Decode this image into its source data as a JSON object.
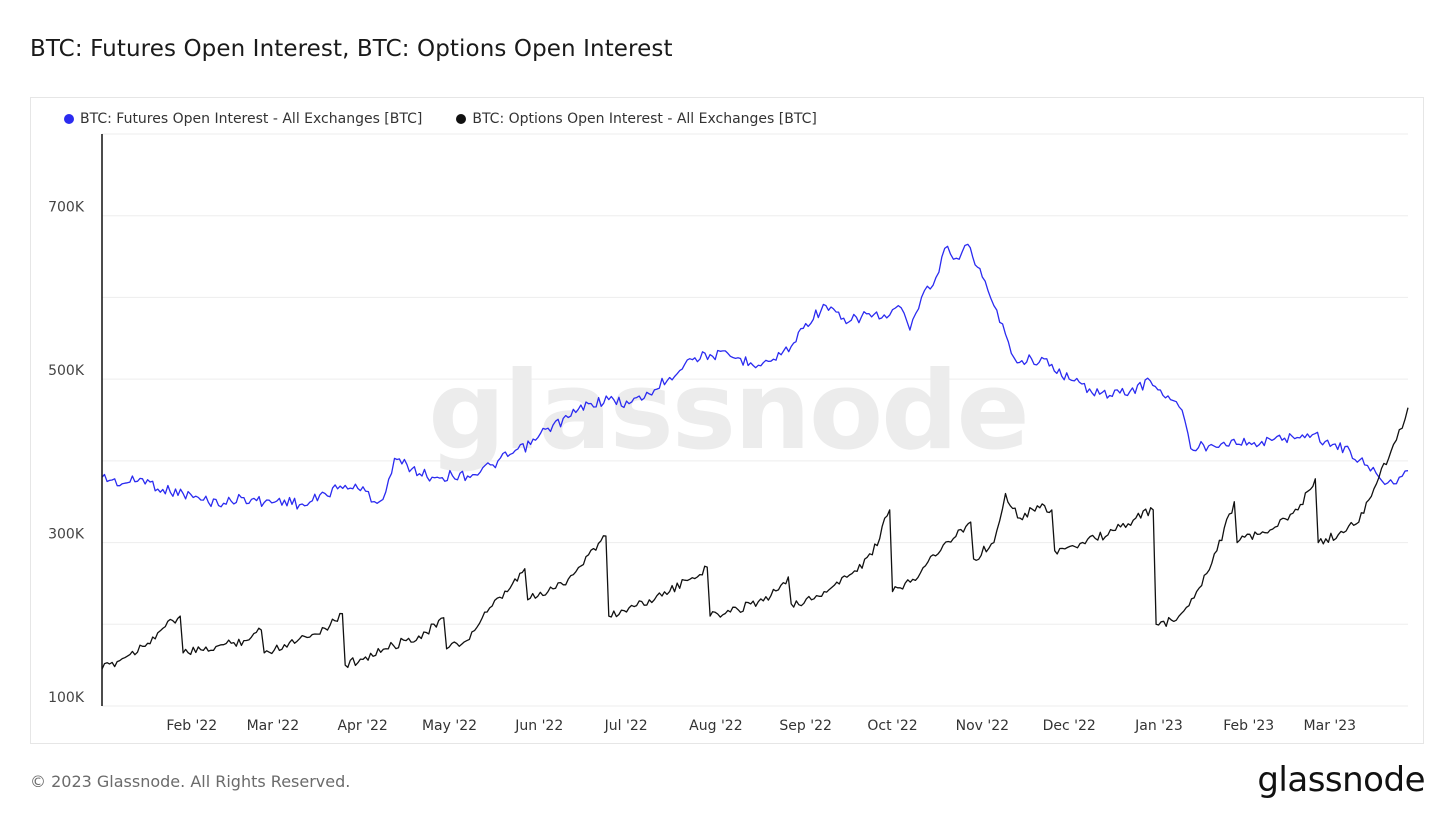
{
  "page": {
    "title": "BTC: Futures Open Interest, BTC: Options Open Interest",
    "copyright": "© 2023 Glassnode. All Rights Reserved.",
    "logo_text": "glassnode",
    "watermark": "glassnode"
  },
  "legend": [
    {
      "label": "BTC: Futures Open Interest - All Exchanges [BTC]",
      "color": "#2b2bf0"
    },
    {
      "label": "BTC: Options Open Interest - All Exchanges [BTC]",
      "color": "#111111"
    }
  ],
  "chart_data": {
    "type": "line",
    "title": "BTC: Futures Open Interest, BTC: Options Open Interest",
    "ylim": [
      100000,
      800000
    ],
    "yticks": [
      {
        "value": 100000,
        "label": "100K"
      },
      {
        "value": 300000,
        "label": "300K"
      },
      {
        "value": 500000,
        "label": "500K"
      },
      {
        "value": 700000,
        "label": "700K"
      }
    ],
    "gridlines": [
      100000,
      200000,
      300000,
      400000,
      500000,
      600000,
      700000,
      800000
    ],
    "xlim": [
      "2022-01-01",
      "2023-03-28"
    ],
    "xticks": [
      {
        "date": "2022-02-01",
        "label": "Feb '22"
      },
      {
        "date": "2022-03-01",
        "label": "Mar '22"
      },
      {
        "date": "2022-04-01",
        "label": "Apr '22"
      },
      {
        "date": "2022-05-01",
        "label": "May '22"
      },
      {
        "date": "2022-06-01",
        "label": "Jun '22"
      },
      {
        "date": "2022-07-01",
        "label": "Jul '22"
      },
      {
        "date": "2022-08-01",
        "label": "Aug '22"
      },
      {
        "date": "2022-09-01",
        "label": "Sep '22"
      },
      {
        "date": "2022-10-01",
        "label": "Oct '22"
      },
      {
        "date": "2022-11-01",
        "label": "Nov '22"
      },
      {
        "date": "2022-12-01",
        "label": "Dec '22"
      },
      {
        "date": "2023-01-01",
        "label": "Jan '23"
      },
      {
        "date": "2023-02-01",
        "label": "Feb '23"
      },
      {
        "date": "2023-03-01",
        "label": "Mar '23"
      }
    ],
    "series": [
      {
        "name": "BTC: Futures Open Interest - All Exchanges [BTC]",
        "color": "#2b2bf0",
        "points": [
          [
            "2022-01-01",
            380000
          ],
          [
            "2022-01-08",
            372000
          ],
          [
            "2022-01-15",
            378000
          ],
          [
            "2022-01-22",
            365000
          ],
          [
            "2022-01-29",
            360000
          ],
          [
            "2022-02-05",
            352000
          ],
          [
            "2022-02-12",
            348000
          ],
          [
            "2022-02-19",
            355000
          ],
          [
            "2022-02-26",
            349000
          ],
          [
            "2022-03-05",
            352000
          ],
          [
            "2022-03-12",
            345000
          ],
          [
            "2022-03-19",
            360000
          ],
          [
            "2022-03-26",
            370000
          ],
          [
            "2022-04-02",
            363000
          ],
          [
            "2022-04-06",
            348000
          ],
          [
            "2022-04-09",
            362000
          ],
          [
            "2022-04-12",
            403000
          ],
          [
            "2022-04-18",
            390000
          ],
          [
            "2022-04-25",
            380000
          ],
          [
            "2022-05-02",
            382000
          ],
          [
            "2022-05-09",
            383000
          ],
          [
            "2022-05-16",
            395000
          ],
          [
            "2022-05-22",
            408000
          ],
          [
            "2022-05-29",
            420000
          ],
          [
            "2022-06-04",
            440000
          ],
          [
            "2022-06-11",
            453000
          ],
          [
            "2022-06-18",
            470000
          ],
          [
            "2022-06-25",
            475000
          ],
          [
            "2022-07-02",
            470000
          ],
          [
            "2022-07-09",
            482000
          ],
          [
            "2022-07-16",
            502000
          ],
          [
            "2022-07-23",
            525000
          ],
          [
            "2022-07-30",
            530000
          ],
          [
            "2022-08-06",
            528000
          ],
          [
            "2022-08-13",
            520000
          ],
          [
            "2022-08-20",
            522000
          ],
          [
            "2022-08-27",
            540000
          ],
          [
            "2022-09-01",
            568000
          ],
          [
            "2022-09-08",
            590000
          ],
          [
            "2022-09-15",
            568000
          ],
          [
            "2022-09-22",
            580000
          ],
          [
            "2022-09-29",
            575000
          ],
          [
            "2022-10-03",
            590000
          ],
          [
            "2022-10-07",
            560000
          ],
          [
            "2022-10-11",
            600000
          ],
          [
            "2022-10-15",
            615000
          ],
          [
            "2022-10-19",
            660000
          ],
          [
            "2022-10-23",
            648000
          ],
          [
            "2022-10-27",
            665000
          ],
          [
            "2022-11-01",
            625000
          ],
          [
            "2022-11-05",
            590000
          ],
          [
            "2022-11-09",
            555000
          ],
          [
            "2022-11-13",
            520000
          ],
          [
            "2022-11-18",
            525000
          ],
          [
            "2022-11-25",
            518000
          ],
          [
            "2022-12-01",
            500000
          ],
          [
            "2022-12-08",
            488000
          ],
          [
            "2022-12-15",
            480000
          ],
          [
            "2022-12-22",
            485000
          ],
          [
            "2022-12-29",
            498000
          ],
          [
            "2023-01-05",
            475000
          ],
          [
            "2023-01-09",
            462000
          ],
          [
            "2023-01-12",
            415000
          ],
          [
            "2023-01-19",
            420000
          ],
          [
            "2023-01-26",
            425000
          ],
          [
            "2023-02-02",
            420000
          ],
          [
            "2023-02-09",
            425000
          ],
          [
            "2023-02-16",
            430000
          ],
          [
            "2023-02-23",
            432000
          ],
          [
            "2023-03-02",
            420000
          ],
          [
            "2023-03-08",
            412000
          ],
          [
            "2023-03-13",
            395000
          ],
          [
            "2023-03-17",
            385000
          ],
          [
            "2023-03-21",
            373000
          ],
          [
            "2023-03-25",
            380000
          ],
          [
            "2023-03-28",
            388000
          ]
        ]
      },
      {
        "name": "BTC: Options Open Interest - All Exchanges [BTC]",
        "color": "#111111",
        "points": [
          [
            "2022-01-01",
            145000
          ],
          [
            "2022-01-08",
            158000
          ],
          [
            "2022-01-15",
            173000
          ],
          [
            "2022-01-22",
            195000
          ],
          [
            "2022-01-28",
            210000
          ],
          [
            "2022-01-29",
            165000
          ],
          [
            "2022-02-05",
            168000
          ],
          [
            "2022-02-12",
            175000
          ],
          [
            "2022-02-19",
            180000
          ],
          [
            "2022-02-25",
            193000
          ],
          [
            "2022-02-26",
            165000
          ],
          [
            "2022-03-05",
            175000
          ],
          [
            "2022-03-12",
            185000
          ],
          [
            "2022-03-19",
            195000
          ],
          [
            "2022-03-25",
            213000
          ],
          [
            "2022-03-26",
            150000
          ],
          [
            "2022-04-02",
            160000
          ],
          [
            "2022-04-09",
            170000
          ],
          [
            "2022-04-16",
            180000
          ],
          [
            "2022-04-23",
            190000
          ],
          [
            "2022-04-29",
            208000
          ],
          [
            "2022-04-30",
            170000
          ],
          [
            "2022-05-07",
            180000
          ],
          [
            "2022-05-14",
            215000
          ],
          [
            "2022-05-21",
            240000
          ],
          [
            "2022-05-27",
            268000
          ],
          [
            "2022-05-28",
            230000
          ],
          [
            "2022-06-04",
            240000
          ],
          [
            "2022-06-11",
            255000
          ],
          [
            "2022-06-18",
            285000
          ],
          [
            "2022-06-24",
            308000
          ],
          [
            "2022-06-25",
            210000
          ],
          [
            "2022-07-02",
            220000
          ],
          [
            "2022-07-09",
            230000
          ],
          [
            "2022-07-16",
            240000
          ],
          [
            "2022-07-23",
            255000
          ],
          [
            "2022-07-29",
            270000
          ],
          [
            "2022-07-30",
            210000
          ],
          [
            "2022-08-06",
            215000
          ],
          [
            "2022-08-13",
            225000
          ],
          [
            "2022-08-20",
            235000
          ],
          [
            "2022-08-26",
            258000
          ],
          [
            "2022-08-27",
            225000
          ],
          [
            "2022-09-03",
            230000
          ],
          [
            "2022-09-10",
            245000
          ],
          [
            "2022-09-17",
            262000
          ],
          [
            "2022-09-24",
            285000
          ],
          [
            "2022-09-30",
            340000
          ],
          [
            "2022-10-01",
            240000
          ],
          [
            "2022-10-08",
            255000
          ],
          [
            "2022-10-15",
            285000
          ],
          [
            "2022-10-22",
            305000
          ],
          [
            "2022-10-28",
            325000
          ],
          [
            "2022-10-29",
            280000
          ],
          [
            "2022-11-05",
            300000
          ],
          [
            "2022-11-09",
            360000
          ],
          [
            "2022-11-14",
            330000
          ],
          [
            "2022-11-20",
            345000
          ],
          [
            "2022-11-25",
            340000
          ],
          [
            "2022-11-26",
            290000
          ],
          [
            "2022-12-03",
            295000
          ],
          [
            "2022-12-10",
            305000
          ],
          [
            "2022-12-17",
            315000
          ],
          [
            "2022-12-24",
            330000
          ],
          [
            "2022-12-30",
            340000
          ],
          [
            "2022-12-31",
            200000
          ],
          [
            "2023-01-07",
            205000
          ],
          [
            "2023-01-14",
            240000
          ],
          [
            "2023-01-21",
            290000
          ],
          [
            "2023-01-27",
            350000
          ],
          [
            "2023-01-28",
            300000
          ],
          [
            "2023-02-04",
            310000
          ],
          [
            "2023-02-11",
            320000
          ],
          [
            "2023-02-18",
            340000
          ],
          [
            "2023-02-24",
            378000
          ],
          [
            "2023-02-25",
            300000
          ],
          [
            "2023-03-04",
            310000
          ],
          [
            "2023-03-11",
            325000
          ],
          [
            "2023-03-18",
            380000
          ],
          [
            "2023-03-23",
            420000
          ],
          [
            "2023-03-26",
            440000
          ],
          [
            "2023-03-28",
            465000
          ]
        ]
      }
    ]
  }
}
